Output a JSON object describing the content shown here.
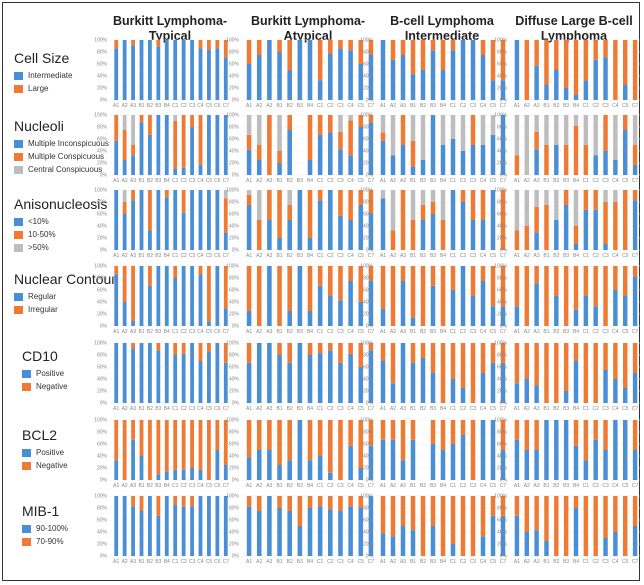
{
  "colors": {
    "blue": "#4a8fd6",
    "orange": "#ee7a34",
    "gray": "#bdbdbd"
  },
  "chart_data": {
    "type": "bar",
    "stacked": true,
    "percent": true,
    "ylim": [
      0,
      100
    ],
    "yticks": [
      "0%",
      "20%",
      "40%",
      "60%",
      "80%",
      "100%"
    ],
    "columns": [
      {
        "title": "Burkitt Lymphoma-Typical",
        "title_lines": [
          "Burkitt Lymphoma-",
          "Typical"
        ],
        "categories": [
          "A1",
          "A2",
          "A3",
          "B1",
          "B2",
          "B3",
          "B4",
          "C1",
          "C2",
          "C3",
          "C4",
          "C5",
          "C6",
          "C7"
        ]
      },
      {
        "title": "Burkitt Lymphoma-Atypical",
        "title_lines": [
          "Burkitt Lymphoma-",
          "Atypical"
        ],
        "categories": [
          "A1",
          "A2",
          "A3",
          "B1",
          "B2",
          "B3",
          "B4",
          "C1",
          "C2",
          "C3",
          "C4",
          "C5",
          "C7"
        ]
      },
      {
        "title": "B-cell Lymphoma Intermediate",
        "title_lines": [
          "B-cell Lymphoma",
          "Intermediate"
        ],
        "categories": [
          "A1",
          "A2",
          "A3",
          "B1",
          "B2",
          "B3",
          "B4",
          "C1",
          "C2",
          "C3",
          "C4",
          "C5",
          "C7"
        ]
      },
      {
        "title": "Diffuse Large B-cell Lymphoma",
        "title_lines": [
          "Diffuse Large B-cell",
          "Lymphoma"
        ],
        "categories": [
          "A1",
          "A2",
          "A3",
          "B1",
          "B2",
          "B3",
          "B4",
          "C1",
          "C2",
          "C3",
          "C4",
          "C5",
          "C7"
        ]
      }
    ],
    "rows": [
      {
        "feature": "Cell Size",
        "legend": [
          {
            "label": "Intermediate",
            "color": "blue"
          },
          {
            "label": "Large",
            "color": "orange"
          }
        ],
        "panels": [
          {
            "series": [
              [
                86,
                100,
                91,
                100,
                100,
                89,
                100,
                100,
                100,
                100,
                86,
                84,
                86,
                71
              ]
            ]
          },
          {
            "series": [
              [
                60,
                75,
                100,
                80,
                50,
                100,
                100,
                33,
                78,
                86,
                83,
                60,
                75
              ]
            ]
          },
          {
            "series": [
              [
                100,
                67,
                75,
                43,
                50,
                83,
                50,
                83,
                100,
                100,
                75,
                33,
                33
              ]
            ]
          },
          {
            "series": [
              [
                100,
                0,
                57,
                25,
                50,
                20,
                9,
                33,
                67,
                71,
                0,
                25,
                0
              ]
            ]
          }
        ]
      },
      {
        "feature": "Nucleoli",
        "legend": [
          {
            "label": "Multiple Inconspicuous",
            "color": "blue"
          },
          {
            "label": "Multiple Conspicuous",
            "color": "orange"
          },
          {
            "label": "Central Conspicuous",
            "color": "gray"
          }
        ],
        "panels": [
          {
            "series": [
              [
                57,
                25,
                33,
                88,
                67,
                100,
                100,
                10,
                12,
                80,
                17,
                100,
                100,
                100
              ],
              [
                43,
                50,
                17,
                12,
                33,
                0,
                0,
                80,
                88,
                20,
                83,
                0,
                0,
                0
              ]
            ]
          },
          {
            "series": [
              [
                42,
                25,
                0,
                20,
                75,
                null,
                25,
                67,
                71,
                43,
                33,
                80,
                88
              ],
              [
                25,
                25,
                100,
                20,
                25,
                null,
                75,
                33,
                29,
                29,
                58,
                20,
                12
              ]
            ]
          },
          {
            "series": [
              [
                57,
                33,
                50,
                14,
                25,
                100,
                50,
                60,
                40,
                50,
                50,
                67,
                100
              ],
              [
                14,
                0,
                50,
                43,
                0,
                0,
                0,
                0,
                0,
                50,
                0,
                0,
                0
              ]
            ]
          },
          {
            "series": [
              [
                0,
                0,
                43,
                0,
                50,
                0,
                0,
                0,
                33,
                40,
                25,
                75,
                17
              ],
              [
                33,
                0,
                29,
                50,
                0,
                50,
                82,
                50,
                0,
                60,
                0,
                25,
                33
              ]
            ]
          }
        ]
      },
      {
        "feature": "Anisonucleosis",
        "legend": [
          {
            "label": "<10%",
            "color": "blue"
          },
          {
            "label": "10-50%",
            "color": "orange"
          },
          {
            "label": ">50%",
            "color": "gray"
          }
        ],
        "panels": [
          {
            "series": [
              [
                100,
                60,
                83,
                100,
                33,
                100,
                88,
                100,
                62,
                100,
                100,
                100,
                100,
                29
              ],
              [
                0,
                20,
                17,
                0,
                67,
                0,
                12,
                0,
                38,
                0,
                0,
                0,
                0,
                57
              ]
            ]
          },
          {
            "series": [
              [
                75,
                0,
                50,
                20,
                50,
                100,
                20,
                83,
                100,
                57,
                50,
                75,
                62
              ],
              [
                17,
                50,
                50,
                80,
                25,
                0,
                80,
                17,
                0,
                43,
                50,
                25,
                38
              ]
            ]
          },
          {
            "series": [
              [
                86,
                0,
                0,
                0,
                50,
                60,
                0,
                100,
                80,
                50,
                50,
                100,
                0
              ],
              [
                0,
                33,
                100,
                50,
                25,
                20,
                50,
                0,
                20,
                50,
                50,
                0,
                100
              ]
            ]
          },
          {
            "series": [
              [
                0,
                0,
                29,
                0,
                50,
                75,
                10,
                67,
                67,
                10,
                0,
                0,
                83
              ],
              [
                33,
                40,
                43,
                75,
                0,
                25,
                30,
                33,
                33,
                70,
                80,
                100,
                17
              ]
            ]
          }
        ]
      },
      {
        "feature": "Nuclear Contour",
        "legend": [
          {
            "label": "Regular",
            "color": "blue"
          },
          {
            "label": "Irregular",
            "color": "orange"
          }
        ],
        "panels": [
          {
            "series": [
              [
                86,
                40,
                9,
                100,
                67,
                100,
                100,
                80,
                100,
                100,
                86,
                8,
                100,
                29
              ]
            ]
          },
          {
            "series": [
              [
                25,
                0,
                100,
                0,
                25,
                100,
                25,
                67,
                50,
                43,
                75,
                40,
                75
              ]
            ]
          },
          {
            "series": [
              [
                29,
                0,
                75,
                14,
                0,
                67,
                0,
                60,
                100,
                50,
                75,
                33,
                33
              ]
            ]
          },
          {
            "series": [
              [
                33,
                0,
                71,
                0,
                50,
                0,
                27,
                50,
                33,
                0,
                60,
                50,
                83
              ]
            ]
          }
        ]
      },
      {
        "feature": "CD10",
        "legend": [
          {
            "label": "Positive",
            "color": "blue"
          },
          {
            "label": "Negative",
            "color": "orange"
          }
        ],
        "panels": [
          {
            "series": [
              [
                100,
                100,
                91,
                100,
                100,
                88,
                100,
                80,
                82,
                100,
                70,
                85,
                100,
                67
              ]
            ]
          },
          {
            "series": [
              [
                67,
                100,
                100,
                80,
                67,
                100,
                80,
                83,
                88,
                67,
                82,
                60,
                88
              ]
            ]
          },
          {
            "series": [
              [
                71,
                33,
                100,
                67,
                75,
                50,
                0,
                40,
                25,
                0,
                50,
                67,
                67
              ]
            ]
          },
          {
            "series": [
              [
                33,
                40,
                29,
                0,
                0,
                20,
                70,
                0,
                0,
                55,
                40,
                25,
                50
              ]
            ]
          }
        ]
      },
      {
        "feature": "BCL2",
        "legend": [
          {
            "label": "Positive",
            "color": "blue"
          },
          {
            "label": "Negative",
            "color": "orange"
          }
        ],
        "panels": [
          {
            "series": [
              [
                33,
                0,
                67,
                40,
                0,
                9,
                14,
                17,
                17,
                20,
                17,
                0,
                50,
                25
              ]
            ]
          },
          {
            "series": [
              [
                38,
                50,
                50,
                25,
                33,
                100,
                33,
                40,
                12,
                0,
                57,
                20,
                57
              ]
            ]
          },
          {
            "series": [
              [
                67,
                67,
                33,
                67,
                null,
                60,
                50,
                60,
                75,
                0,
                100,
                100,
                50
              ]
            ]
          },
          {
            "series": [
              [
                67,
                50,
                50,
                100,
                100,
                100,
                57,
                33,
                67,
                50,
                100,
                100,
                50
              ]
            ]
          }
        ]
      },
      {
        "feature": "MIB-1",
        "legend": [
          {
            "label": "90-100%",
            "color": "blue"
          },
          {
            "label": "70-90%",
            "color": "orange"
          }
        ],
        "panels": [
          {
            "series": [
              [
                100,
                100,
                83,
                75,
                100,
                67,
                100,
                86,
                82,
                83,
                100,
                100,
                100,
                100
              ]
            ]
          },
          {
            "series": [
              [
                82,
                75,
                100,
                80,
                75,
                50,
                80,
                83,
                78,
                75,
                83,
                80,
                100
              ]
            ]
          },
          {
            "series": [
              [
                38,
                33,
                50,
                43,
                0,
                50,
                0,
                20,
                0,
                0,
                33,
                67,
                67
              ]
            ]
          },
          {
            "series": [
              [
                67,
                40,
                43,
                25,
                0,
                0,
                80,
                0,
                0,
                30,
                40,
                0,
                50
              ]
            ]
          }
        ]
      }
    ]
  }
}
